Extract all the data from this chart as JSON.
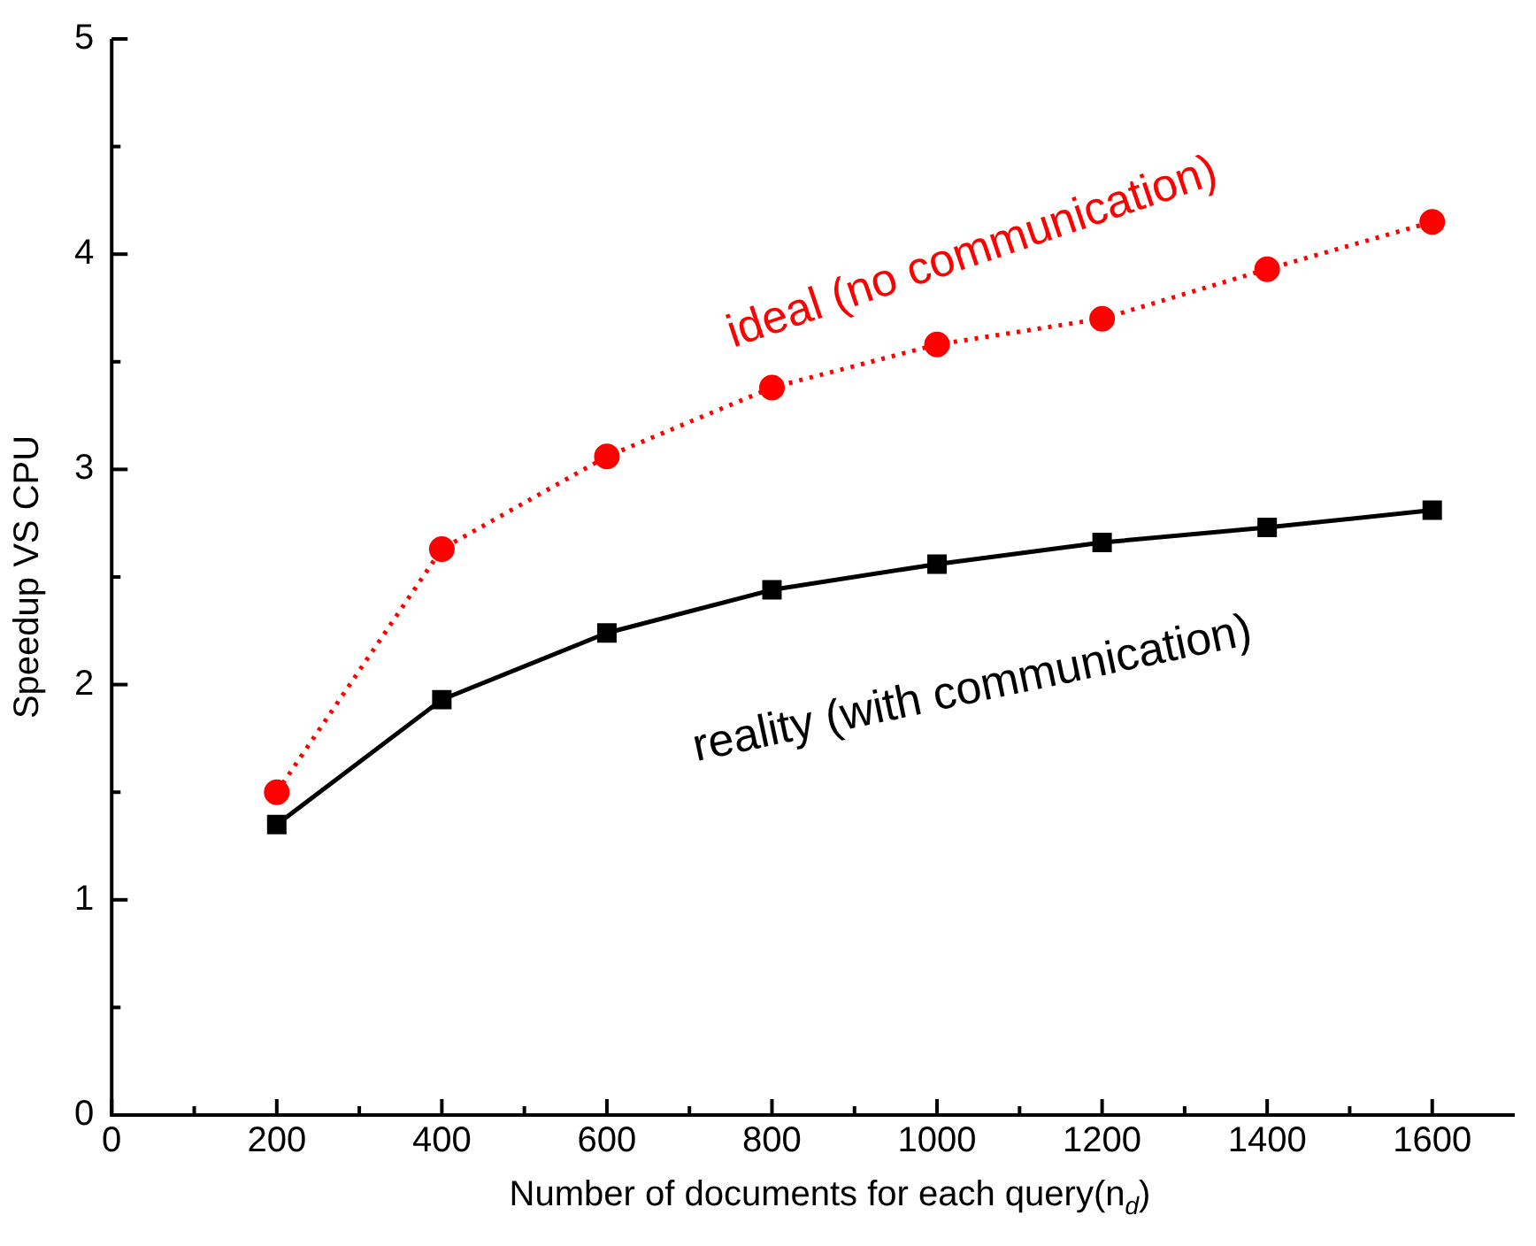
{
  "chart_data": {
    "type": "line",
    "xlabel": "Number of documents for each query(n$_{d}$)",
    "ylabel": "Speedup VS CPU",
    "x": [
      200,
      400,
      600,
      800,
      1000,
      1200,
      1400,
      1600
    ],
    "series": [
      {
        "name": "ideal (no communication)",
        "color": "#ff0000",
        "marker": "circle",
        "line_style": "dotted",
        "values": [
          1.5,
          2.63,
          3.06,
          3.38,
          3.58,
          3.7,
          3.93,
          4.15
        ]
      },
      {
        "name": "reality (with communication)",
        "color": "#000000",
        "marker": "square",
        "line_style": "solid",
        "values": [
          1.35,
          1.93,
          2.24,
          2.44,
          2.56,
          2.66,
          2.73,
          2.81
        ]
      }
    ],
    "xlim": [
      0,
      1700
    ],
    "xticks": [
      0,
      {
        "value": 100,
        "label": null
      },
      200,
      {
        "value": 300,
        "label": null
      },
      400,
      {
        "value": 500,
        "label": null
      },
      600,
      {
        "value": 700,
        "label": null
      },
      800,
      {
        "value": 900,
        "label": null
      },
      1000,
      {
        "value": 1100,
        "label": null
      },
      1200,
      {
        "value": 1300,
        "label": null
      },
      1400,
      {
        "value": 1500,
        "label": null
      },
      1600
    ],
    "ylim": [
      0,
      5
    ],
    "yticks": [
      0,
      {
        "value": 0.5,
        "label": null
      },
      1,
      {
        "value": 1.5,
        "label": null
      },
      2,
      {
        "value": 2.5,
        "label": null
      },
      3,
      {
        "value": 3.5,
        "label": null
      },
      4,
      {
        "value": 4.5,
        "label": null
      },
      5
    ],
    "grid": false,
    "legend": false
  }
}
